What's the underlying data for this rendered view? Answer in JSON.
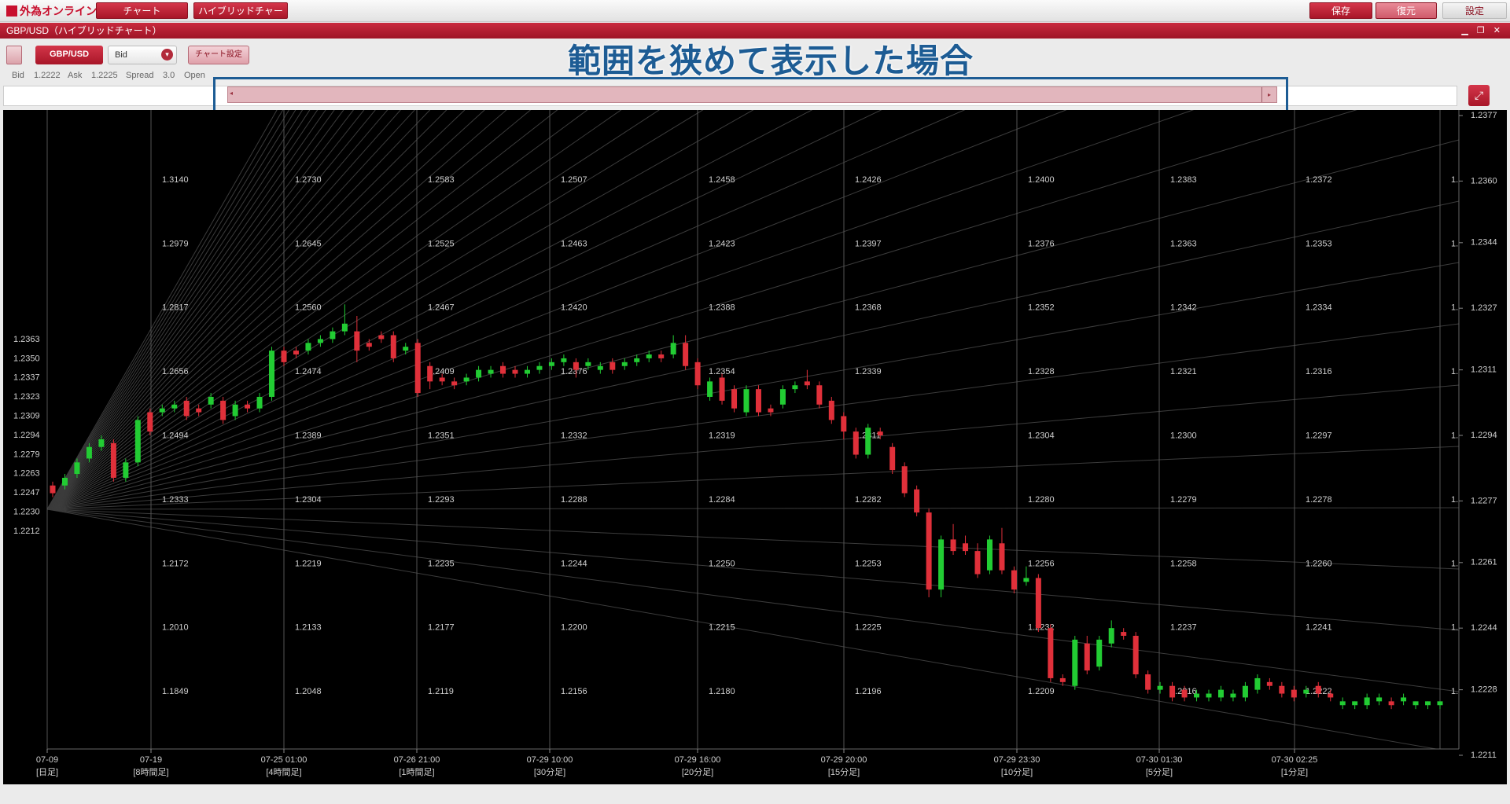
{
  "toolbar": {
    "logo": "外為オンライン",
    "left_buttons": [
      "チャート",
      "ハイブリッドチャート"
    ],
    "right_buttons": [
      "保存",
      "復元",
      "設定"
    ]
  },
  "window": {
    "title": "GBP/USD（ハイブリッドチャート）"
  },
  "controls": {
    "symbol": "GBP/USD",
    "price_type": "Bid",
    "settings_button": "チャート設定"
  },
  "quote": {
    "bid_label": "Bid",
    "bid": "1.2222",
    "ask_label": "Ask",
    "ask": "1.2225",
    "spread_label": "Spread",
    "spread": "3.0",
    "open_label": "Open"
  },
  "annotation": "範囲を狭めて表示した場合",
  "chart_data": {
    "type": "candlestick",
    "up_color": "#22cc33",
    "down_color": "#e0303a",
    "ylim": [
      1.2211,
      1.2377
    ],
    "yticks": [
      1.2377,
      {
        "value": 1.236,
        "label": "1.2360"
      },
      1.2344,
      1.2327,
      1.2311,
      1.2294,
      1.2277,
      1.2261,
      1.2244,
      1.2228,
      1.2211
    ],
    "left_labels": [
      "1.2363",
      "1.2350",
      "1.2337",
      "1.2323",
      "1.2309",
      "1.2294",
      "1.2279",
      "1.2263",
      "1.2247",
      "1.2230",
      "1.2212"
    ],
    "x_labels": [
      {
        "date": "07-09",
        "interval": "[日足]"
      },
      {
        "date": "07-19",
        "interval": "[8時間足]"
      },
      {
        "date": "07-25 01:00",
        "interval": "[4時間足]"
      },
      {
        "date": "07-26 21:00",
        "interval": "[1時間足]"
      },
      {
        "date": "07-29 10:00",
        "interval": "[30分足]"
      },
      {
        "date": "07-29 16:00",
        "interval": "[20分足]"
      },
      {
        "date": "07-29 20:00",
        "interval": "[15分足]"
      },
      {
        "date": "07-29 23:30",
        "interval": "[10分足]"
      },
      {
        "date": "07-30 01:30",
        "interval": "[5分足]"
      },
      {
        "date": "07-30 02:25",
        "interval": "[1分足]"
      }
    ],
    "price_columns": [
      [
        "1.3140",
        "1.2979",
        "1.2817",
        "1.2656",
        "1.2494",
        "1.2333",
        "1.2172",
        "1.2010",
        "1.1849"
      ],
      [
        "1.2730",
        "1.2645",
        "1.2560",
        "1.2474",
        "1.2389",
        "1.2304",
        "1.2219",
        "1.2133",
        "1.2048"
      ],
      [
        "1.2583",
        "1.2525",
        "1.2467",
        "1.2409",
        "1.2351",
        "1.2293",
        "1.2235",
        "1.2177",
        "1.2119"
      ],
      [
        "1.2507",
        "1.2463",
        "1.2420",
        "1.2376",
        "1.2332",
        "1.2288",
        "1.2244",
        "1.2200",
        "1.2156"
      ],
      [
        "1.2458",
        "1.2423",
        "1.2388",
        "1.2354",
        "1.2319",
        "1.2284",
        "1.2250",
        "1.2215",
        "1.2180"
      ],
      [
        "1.2426",
        "1.2397",
        "1.2368",
        "1.2339",
        "1.2311",
        "1.2282",
        "1.2253",
        "1.2225",
        "1.2196"
      ],
      [
        "1.2400",
        "1.2376",
        "1.2352",
        "1.2328",
        "1.2304",
        "1.2280",
        "1.2256",
        "1.2232",
        "1.2209"
      ],
      [
        "1.2383",
        "1.2363",
        "1.2342",
        "1.2321",
        "1.2300",
        "1.2279",
        "1.2258",
        "1.2237",
        "1.2216"
      ],
      [
        "1.2372",
        "1.2353",
        "1.2334",
        "1.2316",
        "1.2297",
        "1.2278",
        "1.2260",
        "1.2241",
        "1.2222"
      ],
      [
        "1.",
        "1.",
        "1.",
        "1.",
        "1.",
        "1.",
        "1.",
        "1.",
        "1."
      ]
    ],
    "open": [
      1.2281,
      1.2281,
      1.2284,
      1.2288,
      1.2291,
      1.2292,
      1.2283,
      1.2287,
      1.23,
      1.23,
      1.2301,
      1.2303,
      1.2301,
      1.2302,
      1.2303,
      1.2299,
      1.2302,
      1.2301,
      1.2304,
      1.2316,
      1.2316,
      1.2316,
      1.2318,
      1.2319,
      1.2321,
      1.2321,
      1.2318,
      1.232,
      1.232,
      1.2316,
      1.2318,
      1.2312,
      1.2309,
      1.2308,
      1.2308,
      1.2309,
      1.231,
      1.2312,
      1.2311,
      1.231,
      1.2311,
      1.2312,
      1.2313,
      1.2313,
      1.2312,
      1.2311,
      1.2313,
      1.2312,
      1.2313,
      1.2314,
      1.2315,
      1.2315,
      1.2318,
      1.2313,
      1.2304,
      1.2309,
      1.2306,
      1.23,
      1.2306,
      1.2301,
      1.2302,
      1.2306,
      1.2308,
      1.2307,
      1.2303,
      1.2299,
      1.2295,
      1.2289,
      1.2295,
      1.2291,
      1.2286,
      1.228,
      1.2274,
      1.2254,
      1.2267,
      1.2266,
      1.2264,
      1.2259,
      1.2266,
      1.2259,
      1.2256,
      1.2257,
      1.2244,
      1.2231,
      1.2229,
      1.224,
      1.2234,
      1.224,
      1.2243,
      1.2242,
      1.2232,
      1.2228,
      1.2229,
      1.2228,
      1.2226,
      1.2226,
      1.2226,
      1.2226,
      1.2226,
      1.2228,
      1.223,
      1.2229,
      1.2228,
      1.2227,
      1.2229,
      1.2227,
      1.2224,
      1.2224,
      1.2224,
      1.2225,
      1.2225,
      1.2225,
      1.2224,
      1.2224,
      1.2224
    ],
    "high": [
      1.2282,
      1.2284,
      1.2288,
      1.2292,
      1.2294,
      1.2293,
      1.2288,
      1.2299,
      1.2301,
      1.2302,
      1.2303,
      1.2304,
      1.2302,
      1.2305,
      1.2304,
      1.2303,
      1.2303,
      1.2305,
      1.2317,
      1.2317,
      1.2317,
      1.2319,
      1.232,
      1.2322,
      1.2328,
      1.2325,
      1.2319,
      1.2321,
      1.2321,
      1.2318,
      1.2319,
      1.2313,
      1.231,
      1.2309,
      1.231,
      1.2312,
      1.2312,
      1.2313,
      1.2312,
      1.2312,
      1.2313,
      1.2314,
      1.2315,
      1.2314,
      1.2314,
      1.2313,
      1.2314,
      1.2314,
      1.2315,
      1.2316,
      1.2316,
      1.232,
      1.232,
      1.2314,
      1.2309,
      1.231,
      1.2307,
      1.2307,
      1.2307,
      1.2302,
      1.2307,
      1.2308,
      1.2311,
      1.2308,
      1.2304,
      1.23,
      1.2296,
      1.2297,
      1.2296,
      1.2292,
      1.2287,
      1.2281,
      1.2275,
      1.2268,
      1.2271,
      1.2268,
      1.2266,
      1.2268,
      1.227,
      1.226,
      1.226,
      1.2258,
      1.2245,
      1.2232,
      1.2242,
      1.2242,
      1.2242,
      1.2246,
      1.2244,
      1.2243,
      1.2233,
      1.223,
      1.223,
      1.2229,
      1.2228,
      1.2228,
      1.2229,
      1.2228,
      1.223,
      1.2232,
      1.2231,
      1.223,
      1.2229,
      1.2229,
      1.223,
      1.2228,
      1.2226,
      1.2225,
      1.2227,
      1.2227,
      1.2226,
      1.2227,
      1.2225,
      1.2225,
      1.2225
    ],
    "low": [
      1.2278,
      1.228,
      1.2283,
      1.2287,
      1.229,
      1.2282,
      1.2282,
      1.2286,
      1.2294,
      1.2299,
      1.23,
      1.2298,
      1.2299,
      1.2301,
      1.2297,
      1.2298,
      1.23,
      1.23,
      1.2303,
      1.2312,
      1.2314,
      1.2315,
      1.2317,
      1.2318,
      1.232,
      1.2313,
      1.2316,
      1.2318,
      1.2313,
      1.2315,
      1.2304,
      1.2306,
      1.2307,
      1.2306,
      1.2307,
      1.2308,
      1.2309,
      1.2309,
      1.2309,
      1.2309,
      1.231,
      1.2311,
      1.2312,
      1.2309,
      1.2311,
      1.231,
      1.231,
      1.2311,
      1.2312,
      1.2313,
      1.2313,
      1.2314,
      1.2311,
      1.2306,
      1.2303,
      1.2302,
      1.23,
      1.2299,
      1.2299,
      1.2299,
      1.2301,
      1.2305,
      1.2306,
      1.2301,
      1.2297,
      1.2293,
      1.2288,
      1.2288,
      1.2293,
      1.2284,
      1.2278,
      1.2273,
      1.2252,
      1.2252,
      1.2263,
      1.2263,
      1.2257,
      1.2258,
      1.2258,
      1.2253,
      1.2255,
      1.2243,
      1.223,
      1.2229,
      1.2228,
      1.2232,
      1.2233,
      1.2239,
      1.2241,
      1.2231,
      1.2227,
      1.2227,
      1.2225,
      1.2225,
      1.2225,
      1.2225,
      1.2225,
      1.2225,
      1.2225,
      1.2227,
      1.2228,
      1.2226,
      1.2225,
      1.2226,
      1.2226,
      1.2225,
      1.2223,
      1.2223,
      1.2223,
      1.2224,
      1.2223,
      1.2224,
      1.2223,
      1.2223,
      1.2223
    ],
    "close": [
      1.2279,
      1.2283,
      1.2287,
      1.2291,
      1.2293,
      1.2283,
      1.2287,
      1.2298,
      1.2295,
      1.2301,
      1.2302,
      1.2299,
      1.23,
      1.2304,
      1.2298,
      1.2302,
      1.2301,
      1.2304,
      1.2316,
      1.2313,
      1.2315,
      1.2318,
      1.2319,
      1.2321,
      1.2323,
      1.2316,
      1.2317,
      1.2319,
      1.2314,
      1.2317,
      1.2305,
      1.2308,
      1.2308,
      1.2307,
      1.2309,
      1.2311,
      1.2311,
      1.231,
      1.231,
      1.2311,
      1.2312,
      1.2313,
      1.2314,
      1.2311,
      1.2313,
      1.2312,
      1.2311,
      1.2313,
      1.2314,
      1.2315,
      1.2314,
      1.2318,
      1.2312,
      1.2307,
      1.2308,
      1.2303,
      1.2301,
      1.2306,
      1.23,
      1.23,
      1.2306,
      1.2307,
      1.2307,
      1.2302,
      1.2298,
      1.2295,
      1.2289,
      1.2296,
      1.2294,
      1.2285,
      1.2279,
      1.2274,
      1.2254,
      1.2267,
      1.2264,
      1.2264,
      1.2258,
      1.2267,
      1.2259,
      1.2254,
      1.2257,
      1.2244,
      1.2231,
      1.223,
      1.2241,
      1.2233,
      1.2241,
      1.2244,
      1.2242,
      1.2232,
      1.2228,
      1.2229,
      1.2226,
      1.2226,
      1.2227,
      1.2227,
      1.2228,
      1.2227,
      1.2229,
      1.2231,
      1.2229,
      1.2227,
      1.2226,
      1.2228,
      1.2227,
      1.2226,
      1.2225,
      1.2225,
      1.2226,
      1.2226,
      1.2224,
      1.2226,
      1.2225,
      1.2225,
      1.2225
    ]
  }
}
